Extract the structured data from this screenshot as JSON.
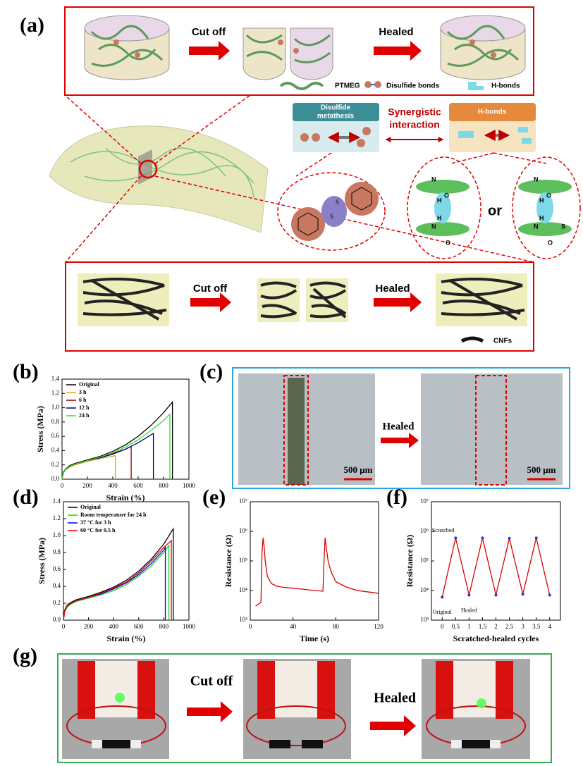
{
  "figure": {
    "panel_labels": [
      "(a)",
      "(b)",
      "(c)",
      "(d)",
      "(e)",
      "(f)",
      "(g)"
    ],
    "a": {
      "steps": [
        "Cut off",
        "Healed"
      ],
      "legend": [
        "PTMEG",
        "Disulfide bonds",
        "H-bonds"
      ],
      "disulfide_box": [
        "Disulfide",
        "metathesis"
      ],
      "synergy": [
        "Synergistic",
        "interaction"
      ],
      "hbond_box": "H-bonds",
      "disulfide_atoms": [
        "S",
        "S"
      ],
      "hbond_left_atoms": [
        "N",
        "H",
        "O",
        "H",
        "N",
        "O"
      ],
      "hbond_right_atoms": [
        "N",
        "H",
        "O",
        "H",
        "N",
        "O",
        "S"
      ],
      "or": "or",
      "cnf_steps": [
        "Cut off",
        "Healed"
      ],
      "cnf_legend": "CNFs"
    },
    "c": {
      "step": "Healed",
      "scale_bars": [
        "500 μm",
        "500 μm"
      ]
    },
    "g": {
      "steps": [
        "Cut off",
        "Healed"
      ]
    }
  },
  "chart_data": [
    {
      "type": "line",
      "xlabel": "Strain (%)",
      "ylabel": "Stress (MPa)",
      "xlim": [
        0,
        1000
      ],
      "xticks": [
        0,
        200,
        400,
        600,
        800,
        1000
      ],
      "ylim": [
        0,
        1.4
      ],
      "yticks": [
        {
          "value": 0,
          "label": "0.0"
        },
        0.2,
        0.4,
        0.6,
        0.8,
        {
          "value": 1,
          "label": "1.0"
        },
        1.2,
        1.4
      ],
      "legend": "upper left",
      "series": [
        {
          "name": "Original",
          "color": "#000000",
          "x": [
            0,
            10,
            30,
            60,
            100,
            200,
            300,
            400,
            500,
            600,
            700,
            800,
            870,
            870
          ],
          "values": [
            0,
            0.1,
            0.15,
            0.19,
            0.22,
            0.27,
            0.32,
            0.39,
            0.48,
            0.6,
            0.75,
            0.93,
            1.08,
            0
          ]
        },
        {
          "name": "3 h",
          "color": "#f39c12",
          "x": [
            0,
            10,
            30,
            60,
            100,
            200,
            300,
            400,
            420,
            420
          ],
          "values": [
            0,
            0.09,
            0.14,
            0.17,
            0.2,
            0.25,
            0.29,
            0.32,
            0.33,
            0
          ]
        },
        {
          "name": "6 h",
          "color": "#8b0000",
          "x": [
            0,
            10,
            30,
            60,
            100,
            200,
            300,
            400,
            500,
            545,
            545
          ],
          "values": [
            0,
            0.09,
            0.14,
            0.18,
            0.21,
            0.26,
            0.3,
            0.36,
            0.42,
            0.46,
            0
          ]
        },
        {
          "name": "12 h",
          "color": "#000080",
          "x": [
            0,
            10,
            30,
            60,
            100,
            200,
            300,
            400,
            500,
            600,
            700,
            720,
            720
          ],
          "values": [
            0,
            0.09,
            0.14,
            0.18,
            0.21,
            0.26,
            0.3,
            0.35,
            0.42,
            0.51,
            0.62,
            0.64,
            0
          ]
        },
        {
          "name": "24 h",
          "color": "#33dd33",
          "x": [
            0,
            10,
            30,
            60,
            100,
            200,
            300,
            400,
            500,
            600,
            700,
            800,
            850,
            850
          ],
          "values": [
            0,
            0.09,
            0.15,
            0.18,
            0.21,
            0.26,
            0.31,
            0.37,
            0.45,
            0.55,
            0.68,
            0.82,
            0.91,
            0
          ]
        }
      ]
    },
    {
      "type": "line",
      "xlabel": "Strain (%)",
      "ylabel": "Stress (MPa)",
      "xlim": [
        0,
        1000
      ],
      "xticks": [
        0,
        200,
        400,
        600,
        800,
        1000
      ],
      "ylim": [
        0,
        1.4
      ],
      "yticks": [
        {
          "value": 0,
          "label": "0.0"
        },
        0.2,
        0.4,
        0.6,
        0.8,
        {
          "value": 1,
          "label": "1.0"
        },
        1.2,
        1.4
      ],
      "legend": "upper left",
      "series": [
        {
          "name": "Original",
          "color": "#000000",
          "x": [
            0,
            10,
            30,
            60,
            100,
            200,
            300,
            400,
            500,
            600,
            700,
            800,
            875,
            875
          ],
          "values": [
            0,
            0.12,
            0.18,
            0.21,
            0.24,
            0.28,
            0.33,
            0.39,
            0.47,
            0.58,
            0.72,
            0.9,
            1.08,
            0
          ]
        },
        {
          "name": "Room temperature for 24 h",
          "color": "#22cc22",
          "x": [
            0,
            10,
            30,
            60,
            100,
            200,
            300,
            400,
            500,
            600,
            700,
            800,
            840,
            840
          ],
          "values": [
            0,
            0.1,
            0.15,
            0.19,
            0.22,
            0.26,
            0.3,
            0.35,
            0.42,
            0.52,
            0.64,
            0.8,
            0.88,
            0
          ]
        },
        {
          "name": "37 °C for 3 h",
          "color": "#0000ee",
          "x": [
            0,
            10,
            30,
            60,
            100,
            200,
            300,
            400,
            500,
            600,
            700,
            800,
            812,
            812
          ],
          "values": [
            0,
            0.11,
            0.17,
            0.2,
            0.23,
            0.27,
            0.31,
            0.37,
            0.44,
            0.54,
            0.67,
            0.83,
            0.86,
            0
          ]
        },
        {
          "name": "60 °C for 0.5 h",
          "color": "#ee0000",
          "x": [
            0,
            10,
            30,
            60,
            100,
            200,
            300,
            400,
            500,
            600,
            700,
            800,
            860,
            860
          ],
          "values": [
            0,
            0.11,
            0.17,
            0.2,
            0.23,
            0.27,
            0.32,
            0.38,
            0.45,
            0.56,
            0.7,
            0.86,
            0.94,
            0
          ]
        }
      ]
    },
    {
      "type": "line",
      "xlabel": "Time (s)",
      "ylabel": "Resistance (Ω)",
      "xlim": [
        0,
        120
      ],
      "xticks": [
        0,
        40,
        80,
        120
      ],
      "ylim": [
        1000,
        10000000
      ],
      "log_y": true,
      "yticks": [
        {
          "value": 1000,
          "label": "10³"
        },
        {
          "value": 10000,
          "label": "10⁴"
        },
        {
          "value": 100000,
          "label": "10⁵"
        },
        {
          "value": 1000000,
          "label": "10⁶"
        },
        {
          "value": 10000000,
          "label": "10⁷"
        }
      ],
      "series": [
        {
          "color": "#dd0000",
          "x": [
            5,
            8,
            10,
            11,
            12,
            13,
            14,
            16,
            20,
            25,
            30,
            40,
            50,
            60,
            68,
            69,
            70,
            71,
            73,
            76,
            80,
            90,
            100,
            110,
            120
          ],
          "values": [
            3000,
            3500,
            4000,
            200000,
            600000,
            300000,
            100000,
            30000,
            17000,
            14000,
            13000,
            12000,
            11000,
            10000,
            9500,
            100000,
            600000,
            300000,
            90000,
            40000,
            20000,
            13000,
            10000,
            9000,
            8000
          ]
        }
      ]
    },
    {
      "type": "line",
      "xlabel": "Scratched-healed cycles",
      "ylabel": "Resistance (Ω)",
      "xlim": [
        -0.4,
        4.4
      ],
      "xticks": [
        0,
        0.5,
        1,
        1.5,
        2,
        2.5,
        3,
        3.5,
        4
      ],
      "ylim": [
        1000,
        10000000
      ],
      "log_y": true,
      "yticks": [
        {
          "value": 1000,
          "label": "10³"
        },
        {
          "value": 10000,
          "label": "10⁴"
        },
        {
          "value": 100000,
          "label": "10⁵"
        },
        {
          "value": 1000000,
          "label": "10⁶"
        },
        {
          "value": 10000000,
          "label": "10⁷"
        }
      ],
      "annotations": [
        "Scratched",
        "Original",
        "Healed"
      ],
      "series": [
        {
          "color": "#dd0000",
          "marker_color": "#3333cc",
          "x": [
            0,
            0.5,
            1,
            1.5,
            2,
            2.5,
            3,
            3.5,
            4
          ],
          "values": [
            6000,
            600000,
            7000,
            600000,
            7000,
            580000,
            7500,
            600000,
            7000
          ]
        }
      ]
    }
  ]
}
